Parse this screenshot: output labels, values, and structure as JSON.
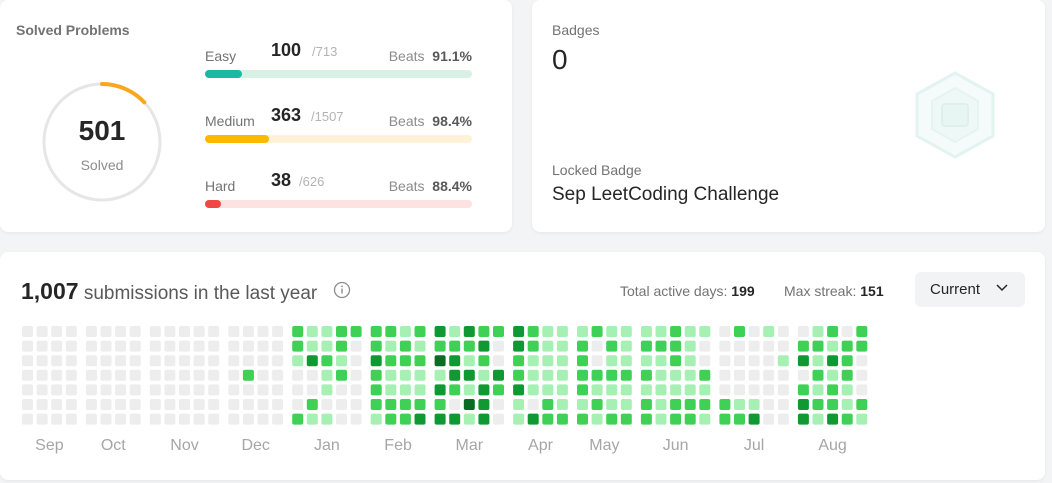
{
  "solved": {
    "title": "Solved Problems",
    "count": "501",
    "label": "Solved",
    "ring_fraction": 0.13,
    "difficulties": [
      {
        "name": "Easy",
        "solved": "100",
        "total": "/713",
        "beats_label": "Beats",
        "beats": "91.1%",
        "fraction": 0.14,
        "color": "#1cb8a3",
        "track": "#d7f2e4"
      },
      {
        "name": "Medium",
        "solved": "363",
        "total": "/1507",
        "beats_label": "Beats",
        "beats": "98.4%",
        "fraction": 0.24,
        "color": "#ffb800",
        "track": "#fff2d6"
      },
      {
        "name": "Hard",
        "solved": "38",
        "total": "/626",
        "beats_label": "Beats",
        "beats": "88.4%",
        "fraction": 0.06,
        "color": "#ef4743",
        "track": "#fde2e2"
      }
    ],
    "ring_color": "#f9a620",
    "ring_track_color": "#e6e6e6"
  },
  "badges": {
    "title": "Badges",
    "count": "0",
    "locked_label": "Locked Badge",
    "locked_name": "Sep LeetCoding Challenge",
    "icon": "hexagon-badge-icon"
  },
  "calendar": {
    "count": "1,007",
    "heading": " submissions in the last year",
    "total_active_label": "Total active days: ",
    "total_active": "199",
    "max_streak_label": "Max streak: ",
    "max_streak": "151",
    "range_select": "Current",
    "months": [
      "Sep",
      "Oct",
      "Nov",
      "Dec",
      "Jan",
      "Feb",
      "Mar",
      "Apr",
      "May",
      "Jun",
      "Jul",
      "Aug"
    ],
    "level_colors": [
      "#ededed",
      "#a6f0b4",
      "#3fd155",
      "#109932",
      "#0a6b24"
    ],
    "month_weeks": [
      [
        "0000000",
        "0000000",
        "0000000",
        "0000000"
      ],
      [
        "0000000",
        "0000000",
        "0000000",
        "0000000"
      ],
      [
        "0000000",
        "0000000",
        "0000000",
        "0000000",
        "0000000"
      ],
      [
        "0000000",
        "0002000",
        "0000000",
        "0000000"
      ],
      [
        "2210002",
        "1130021",
        "1121101",
        "2212000",
        "2000000"
      ],
      [
        "2232221",
        "2121122",
        "1221122",
        "2121123"
      ],
      [
        "3241323",
        "1233203",
        "3213141",
        "2321333",
        "2003200"
      ],
      [
        "3322311",
        "2211103",
        "1111122",
        "1111112"
      ],
      [
        "1222212",
        "2002121",
        "1212112",
        "1112112"
      ],
      [
        "1212122",
        "1211111",
        "2221122",
        "1111122",
        "1002121"
      ],
      [
        "0000022",
        "2000012",
        "0000013",
        "1000000",
        "0010000"
      ],
      [
        "0230233",
        "1212121",
        "2131223",
        "0222112",
        "2200021"
      ]
    ]
  }
}
